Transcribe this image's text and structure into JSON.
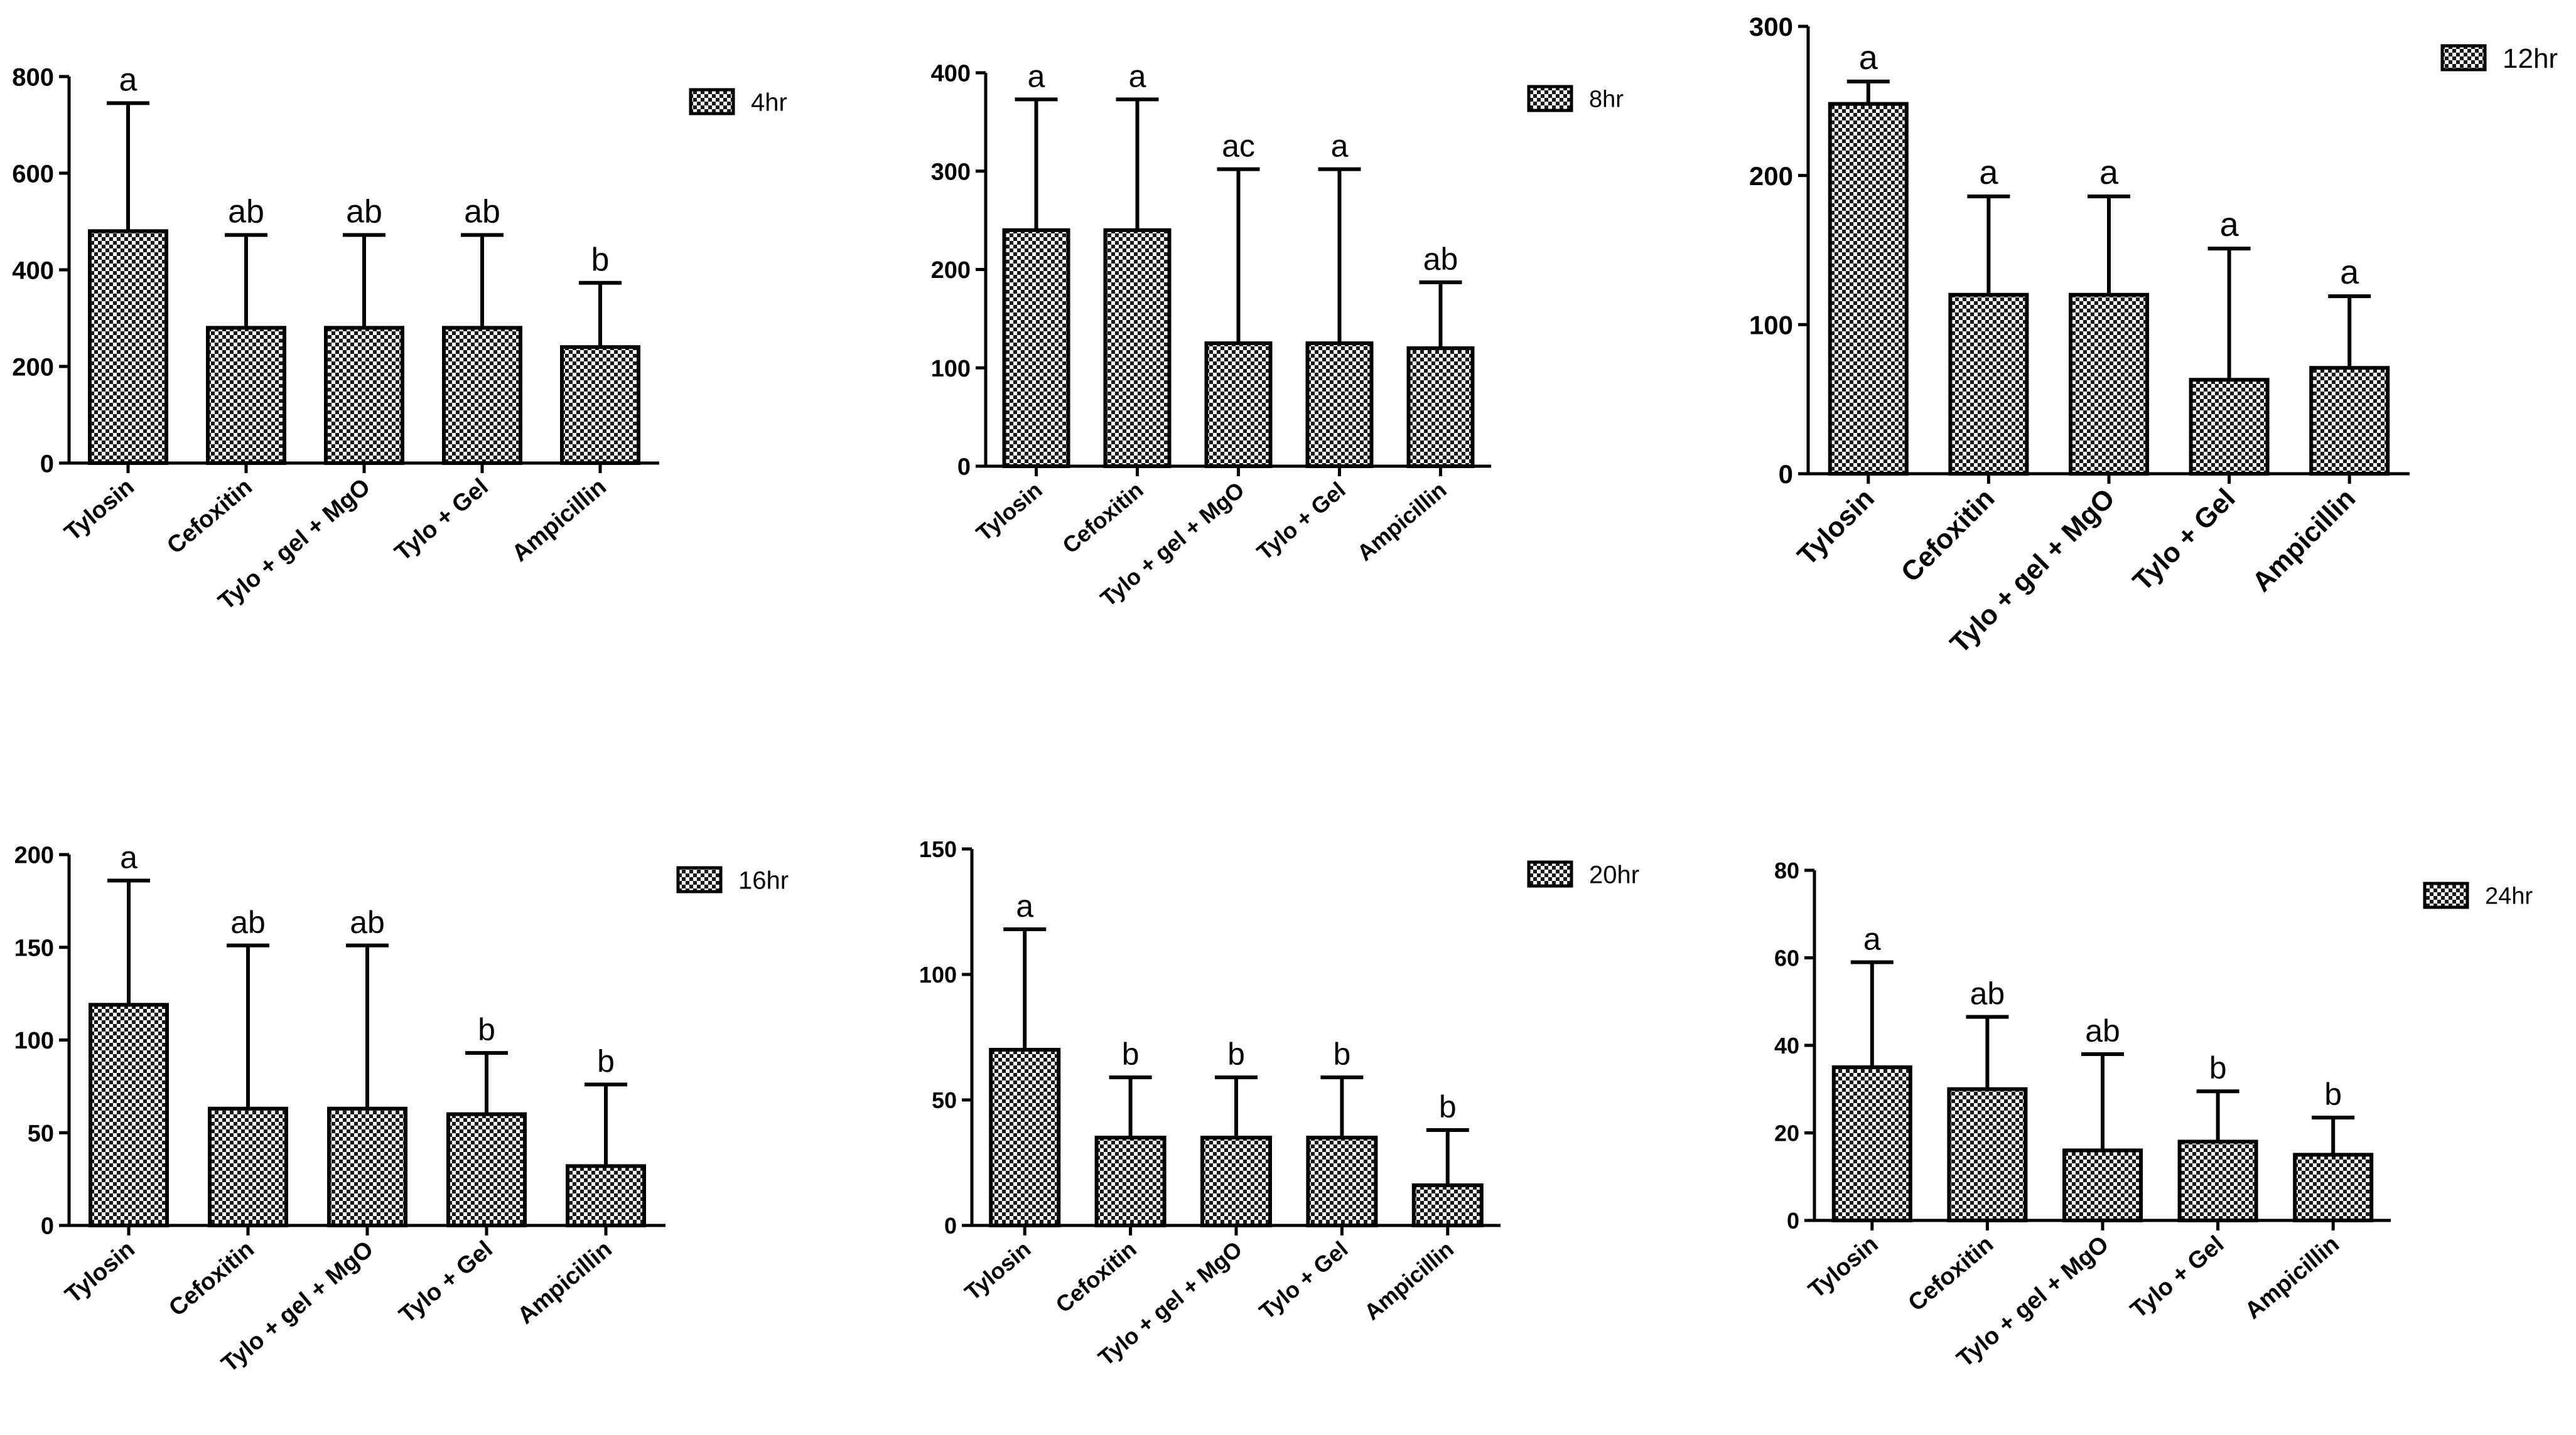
{
  "colors": {
    "bar_fill": "#bdbdbd",
    "stroke": "#000000",
    "background": "#ffffff"
  },
  "chart_data": [
    {
      "type": "bar",
      "legend": "4hr",
      "categories": [
        "Tylosin",
        "Cefoxitin",
        "Tylo + gel + MgO",
        "Tylo + Gel",
        "Ampicillin"
      ],
      "values": [
        480,
        280,
        280,
        280,
        240
      ],
      "errors": [
        265,
        192,
        192,
        192,
        133
      ],
      "significance": [
        "a",
        "ab",
        "ab",
        "ab",
        "b"
      ],
      "ylim": [
        0,
        800
      ],
      "yticks": [
        0,
        200,
        400,
        600,
        800
      ],
      "xlabel": "",
      "ylabel": ""
    },
    {
      "type": "bar",
      "legend": "8hr",
      "categories": [
        "Tylosin",
        "Cefoxitin",
        "Tylo + gel + MgO",
        "Tylo + Gel",
        "Ampicillin"
      ],
      "values": [
        240,
        240,
        125,
        125,
        120
      ],
      "errors": [
        133,
        133,
        177,
        177,
        67
      ],
      "significance": [
        "a",
        "a",
        "ac",
        "a",
        "ab"
      ],
      "ylim": [
        0,
        400
      ],
      "yticks": [
        0,
        100,
        200,
        300,
        400
      ],
      "xlabel": "",
      "ylabel": ""
    },
    {
      "type": "bar",
      "legend": "12hr",
      "categories": [
        "Tylosin",
        "Cefoxitin",
        "Tylo + gel + MgO",
        "Tylo + Gel",
        "Ampicillin"
      ],
      "values": [
        248,
        120,
        120,
        63,
        71
      ],
      "errors": [
        15,
        66,
        66,
        88,
        48
      ],
      "significance": [
        "a",
        "a",
        "a",
        "a",
        "a"
      ],
      "ylim": [
        0,
        300
      ],
      "yticks": [
        0,
        100,
        200,
        300
      ],
      "xlabel": "",
      "ylabel": ""
    },
    {
      "type": "bar",
      "legend": "16hr",
      "categories": [
        "Tylosin",
        "Cefoxitin",
        "Tylo + gel + MgO",
        "Tylo + Gel",
        "Ampicillin"
      ],
      "values": [
        119,
        63,
        63,
        60,
        32
      ],
      "errors": [
        67,
        88,
        88,
        33,
        44
      ],
      "significance": [
        "a",
        "ab",
        "ab",
        "b",
        "b"
      ],
      "ylim": [
        0,
        200
      ],
      "yticks": [
        0,
        50,
        100,
        150,
        200
      ],
      "xlabel": "",
      "ylabel": ""
    },
    {
      "type": "bar",
      "legend": "20hr",
      "categories": [
        "Tylosin",
        "Cefoxitin",
        "Tylo + gel + MgO",
        "Tylo + Gel",
        "Ampicillin"
      ],
      "values": [
        70,
        35,
        35,
        35,
        16
      ],
      "errors": [
        48,
        24,
        24,
        24,
        22
      ],
      "significance": [
        "a",
        "b",
        "b",
        "b",
        "b"
      ],
      "ylim": [
        0,
        150
      ],
      "yticks": [
        0,
        50,
        100,
        150
      ],
      "xlabel": "",
      "ylabel": ""
    },
    {
      "type": "bar",
      "legend": "24hr",
      "categories": [
        "Tylosin",
        "Cefoxitin",
        "Tylo + gel + MgO",
        "Tylo + Gel",
        "Ampicillin"
      ],
      "values": [
        35,
        30,
        16,
        18,
        15
      ],
      "errors": [
        24,
        16.5,
        22,
        11.5,
        8.5
      ],
      "significance": [
        "a",
        "ab",
        "ab",
        "b",
        "b"
      ],
      "ylim": [
        0,
        80
      ],
      "yticks": [
        0,
        20,
        40,
        60,
        80
      ],
      "xlabel": "",
      "ylabel": ""
    }
  ]
}
